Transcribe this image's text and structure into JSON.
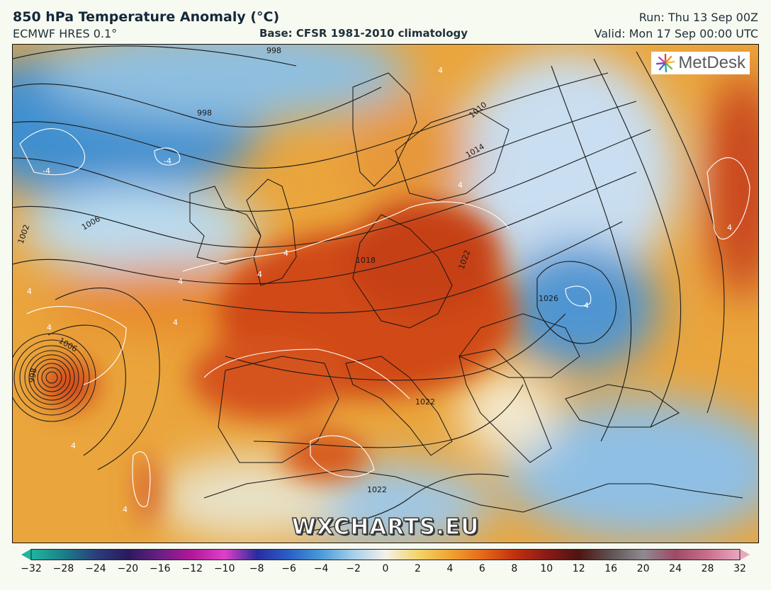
{
  "header": {
    "title": "850 hPa Temperature Anomaly (°C)",
    "model": "ECMWF HRES 0.1°",
    "base": "Base: CFSR 1981-2010 climatology",
    "run": "Run: Thu 13 Sep 00Z",
    "valid": "Valid: Mon 17 Sep 00:00 UTC"
  },
  "logo": {
    "text": "MetDesk",
    "icon": "metdesk-burst-icon"
  },
  "watermark": "WXCHARTS.EU",
  "map": {
    "isobar_labels": [
      "998",
      "998",
      "1002",
      "1006",
      "1006",
      "1010",
      "1014",
      "1018",
      "1022",
      "1022",
      "1022",
      "1026",
      "998"
    ],
    "anomaly_labels": [
      "4",
      "-4",
      "-4",
      "4",
      "4",
      "4",
      "4",
      "4",
      "-4",
      "4",
      "4",
      "4",
      "4",
      "4"
    ]
  },
  "legend": {
    "min": -32,
    "max": 32,
    "tick_labels": [
      "−32",
      "−28",
      "−24",
      "−20",
      "−16",
      "−12",
      "−10",
      "−8",
      "−6",
      "−4",
      "−2",
      "0",
      "2",
      "4",
      "6",
      "8",
      "10",
      "12",
      "16",
      "20",
      "24",
      "28",
      "32"
    ],
    "colors": [
      "#1fb6a0",
      "#1b7f88",
      "#2a3f7c",
      "#2a1a5e",
      "#6a1f84",
      "#b2189a",
      "#e040c8",
      "#2b2b9e",
      "#2a5fc7",
      "#4a9bd8",
      "#a7cfea",
      "#f4f1ea",
      "#f2d56a",
      "#f0a433",
      "#e56a1a",
      "#c2310f",
      "#8a1b16",
      "#4c1512",
      "#605352",
      "#8e8a92",
      "#9e4a66",
      "#c86f8e",
      "#eaa8c0"
    ]
  }
}
